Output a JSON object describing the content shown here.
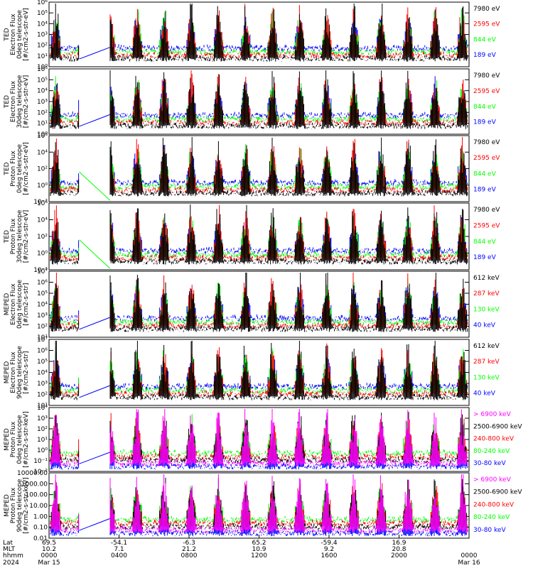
{
  "colors": {
    "black": "#000000",
    "red": "#ff0000",
    "green": "#00ff00",
    "blue": "#0000ff",
    "magenta": "#ff00ff"
  },
  "chart_data": [
    {
      "type": "line",
      "ylabel": [
        "TED",
        "Electron Flux",
        "0deg telescope",
        "[#/cm2-s-str-eV]"
      ],
      "yscale": "log",
      "ylim": [
        1,
        1000000
      ],
      "yticks": [
        "10⁰",
        "10¹",
        "10²",
        "10³",
        "10⁴",
        "10⁵",
        "10⁶"
      ],
      "legend": [
        {
          "label": "7980 eV",
          "color": "#000000"
        },
        {
          "label": "2595 eV",
          "color": "#ff0000"
        },
        {
          "label": "844 eV",
          "color": "#00ff00"
        },
        {
          "label": "189 eV",
          "color": "#0000ff"
        }
      ]
    },
    {
      "type": "line",
      "ylabel": [
        "TED",
        "Electron Flux",
        "30deg telescope",
        "[#/cm2-s-str-eV]"
      ],
      "yscale": "log",
      "ylim": [
        1,
        1000000
      ],
      "yticks": [
        "10⁰",
        "10¹",
        "10²",
        "10³",
        "10⁴",
        "10⁵",
        "10⁶"
      ],
      "legend": [
        {
          "label": "7980 eV",
          "color": "#000000"
        },
        {
          "label": "2595 eV",
          "color": "#ff0000"
        },
        {
          "label": "844 eV",
          "color": "#00ff00"
        },
        {
          "label": "189 eV",
          "color": "#0000ff"
        }
      ]
    },
    {
      "type": "line",
      "ylabel": [
        "TED",
        "Proton Flux",
        "0deg telescope",
        "[#/cm2-s-str-eV]"
      ],
      "yscale": "log",
      "ylim": [
        0.01,
        1000000
      ],
      "yticks": [
        "10⁻²",
        "10⁰",
        "10²",
        "10⁴",
        "10⁶"
      ],
      "legend": [
        {
          "label": "7980 eV",
          "color": "#000000"
        },
        {
          "label": "2595 eV",
          "color": "#ff0000"
        },
        {
          "label": "844 eV",
          "color": "#00ff00"
        },
        {
          "label": "189 eV",
          "color": "#0000ff"
        }
      ]
    },
    {
      "type": "line",
      "ylabel": [
        "TED",
        "Proton Flux",
        "30deg telescope",
        "[#/cm2-s-str-eV]"
      ],
      "yscale": "log",
      "ylim": [
        0.01,
        1000000
      ],
      "yticks": [
        "10⁻²",
        "10⁰",
        "10²",
        "10⁴",
        "10⁶"
      ],
      "legend": [
        {
          "label": "7980 eV",
          "color": "#000000"
        },
        {
          "label": "2595 eV",
          "color": "#ff0000"
        },
        {
          "label": "844 eV",
          "color": "#00ff00"
        },
        {
          "label": "189 eV",
          "color": "#0000ff"
        }
      ]
    },
    {
      "type": "line",
      "ylabel": [
        "MEPED",
        "Electron Flux",
        "0deg telescope",
        "[#/cm2-s-str]"
      ],
      "yscale": "log",
      "ylim": [
        10,
        10000000
      ],
      "yticks": [
        "10¹",
        "10²",
        "10³",
        "10⁴",
        "10⁵",
        "10⁶",
        "10⁷"
      ],
      "legend": [
        {
          "label": "612 keV",
          "color": "#000000"
        },
        {
          "label": "287 keV",
          "color": "#ff0000"
        },
        {
          "label": "130 keV",
          "color": "#00ff00"
        },
        {
          "label": "40 keV",
          "color": "#0000ff"
        }
      ]
    },
    {
      "type": "line",
      "ylabel": [
        "MEPED",
        "Electron Flux",
        "90deg telescope",
        "[#/cm2-s-str]"
      ],
      "yscale": "log",
      "ylim": [
        10,
        10000000
      ],
      "yticks": [
        "10¹",
        "10²",
        "10³",
        "10⁴",
        "10⁵",
        "10⁶",
        "10⁷"
      ],
      "legend": [
        {
          "label": "612 keV",
          "color": "#000000"
        },
        {
          "label": "287 keV",
          "color": "#ff0000"
        },
        {
          "label": "130 keV",
          "color": "#00ff00"
        },
        {
          "label": "40 keV",
          "color": "#0000ff"
        }
      ]
    },
    {
      "type": "line",
      "ylabel": [
        "MEPED",
        "Proton Flux",
        "0deg telescope",
        "[#/cm2-s-str-keV]"
      ],
      "yscale": "log",
      "ylim": [
        0.01,
        10000
      ],
      "yticks": [
        "10⁻²",
        "10⁻¹",
        "10⁰",
        "10¹",
        "10²",
        "10³",
        "10⁴"
      ],
      "legend": [
        {
          "label": "> 6900 keV",
          "color": "#ff00ff"
        },
        {
          "label": "2500-6900 keV",
          "color": "#000000"
        },
        {
          "label": "240-800 keV",
          "color": "#ff0000"
        },
        {
          "label": "80-240 keV",
          "color": "#00ff00"
        },
        {
          "label": "30-80 keV",
          "color": "#0000ff"
        }
      ]
    },
    {
      "type": "line",
      "ylabel": [
        "MEPED",
        "Proton Flux",
        "90deg telescope",
        "[#/cm2-s-str-keV]"
      ],
      "yscale": "log",
      "ylim": [
        0.01,
        10000
      ],
      "yticks": [
        "0.01",
        "0.10",
        "1.00",
        "10.00",
        "100.00",
        "1000.00",
        "10000.00"
      ],
      "legend": [
        {
          "label": "> 6900 keV",
          "color": "#ff00ff"
        },
        {
          "label": "2500-6900 keV",
          "color": "#000000"
        },
        {
          "label": "240-800 keV",
          "color": "#ff0000"
        },
        {
          "label": "80-240 keV",
          "color": "#00ff00"
        },
        {
          "label": "30-80 keV",
          "color": "#0000ff"
        }
      ]
    }
  ],
  "time_axis": {
    "row_labels": [
      "Lat",
      "MLT",
      "hhmm",
      "2024"
    ],
    "ticks": [
      {
        "lat": "69.5",
        "mlt": "10.2",
        "hhmm": "0000",
        "date": "Mar 15"
      },
      {
        "lat": "-54.1",
        "mlt": "7.1",
        "hhmm": "0400",
        "date": ""
      },
      {
        "lat": "-6.3",
        "mlt": "21.2",
        "hhmm": "0800",
        "date": ""
      },
      {
        "lat": "65.2",
        "mlt": "10.9",
        "hhmm": "1200",
        "date": ""
      },
      {
        "lat": "-59.4",
        "mlt": "9.2",
        "hhmm": "1600",
        "date": ""
      },
      {
        "lat": "16.9",
        "mlt": "20.8",
        "hhmm": "2000",
        "date": ""
      },
      {
        "lat": "",
        "mlt": "",
        "hhmm": "0000",
        "date": "Mar 16"
      }
    ]
  }
}
